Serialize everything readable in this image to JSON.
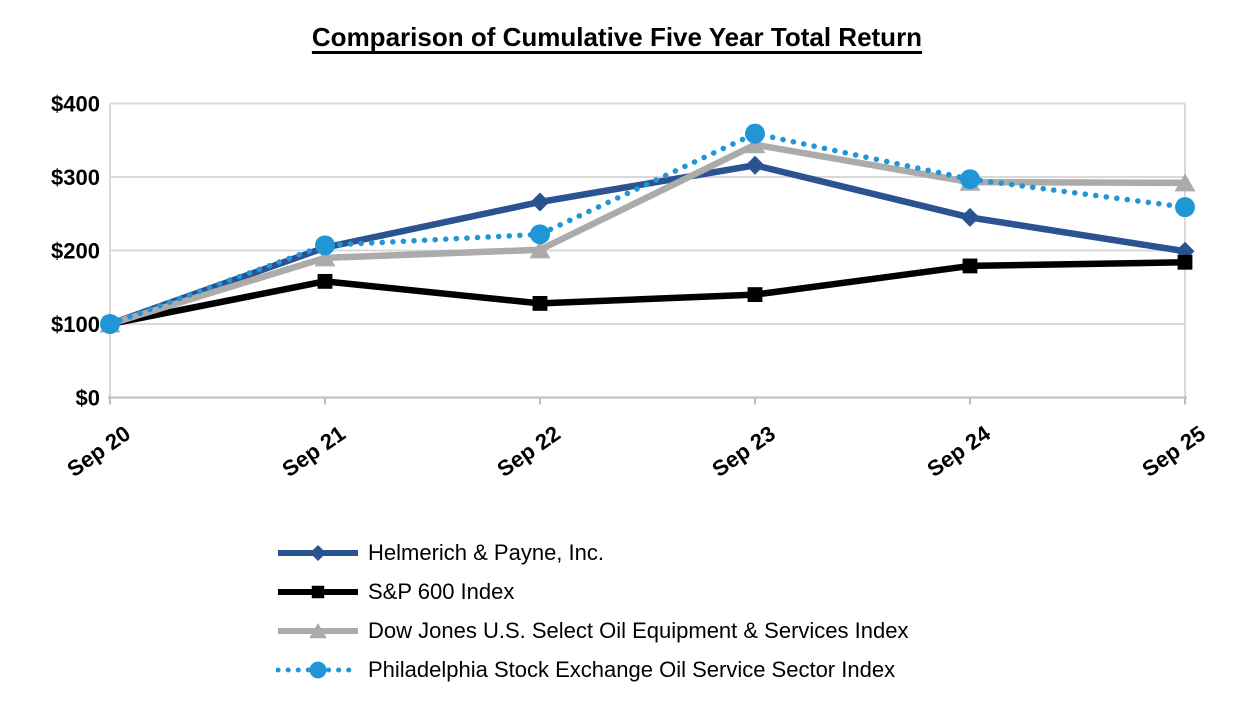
{
  "chart_data": {
    "type": "line",
    "title": "Comparison of Cumulative Five Year Total Return",
    "categories": [
      "Sep 20",
      "Sep 21",
      "Sep 22",
      "Sep 23",
      "Sep 24",
      "Sep 25"
    ],
    "y_ticks": [
      "$0",
      "$100",
      "$200",
      "$300",
      "$400"
    ],
    "y_tick_values": [
      0,
      100,
      200,
      300,
      400
    ],
    "ylim": [
      0,
      400
    ],
    "grid": true,
    "legend_position": "bottom",
    "series": [
      {
        "name": "Helmerich & Payne, Inc.",
        "color": "#2B5291",
        "line": "solid",
        "marker": "diamond",
        "values": [
          100,
          204,
          266,
          316,
          245,
          199
        ]
      },
      {
        "name": "S&P 600 Index",
        "color": "#000000",
        "line": "solid",
        "marker": "square",
        "values": [
          100,
          158,
          128,
          140,
          179,
          184
        ]
      },
      {
        "name": "Dow Jones U.S. Select Oil Equipment & Services Index",
        "color": "#ABABAB",
        "line": "solid",
        "marker": "triangle",
        "values": [
          100,
          190,
          201,
          344,
          293,
          292
        ]
      },
      {
        "name": "Philadelphia Stock Exchange Oil Service Sector Index",
        "color": "#2196D6",
        "line": "dotted",
        "marker": "circle",
        "values": [
          100,
          207,
          222,
          359,
          297,
          259
        ]
      }
    ],
    "colors": {
      "gridline": "#D9D9D9",
      "axis_line": "#BFBFBF",
      "text": "#000000",
      "background": "#FFFFFF"
    }
  }
}
